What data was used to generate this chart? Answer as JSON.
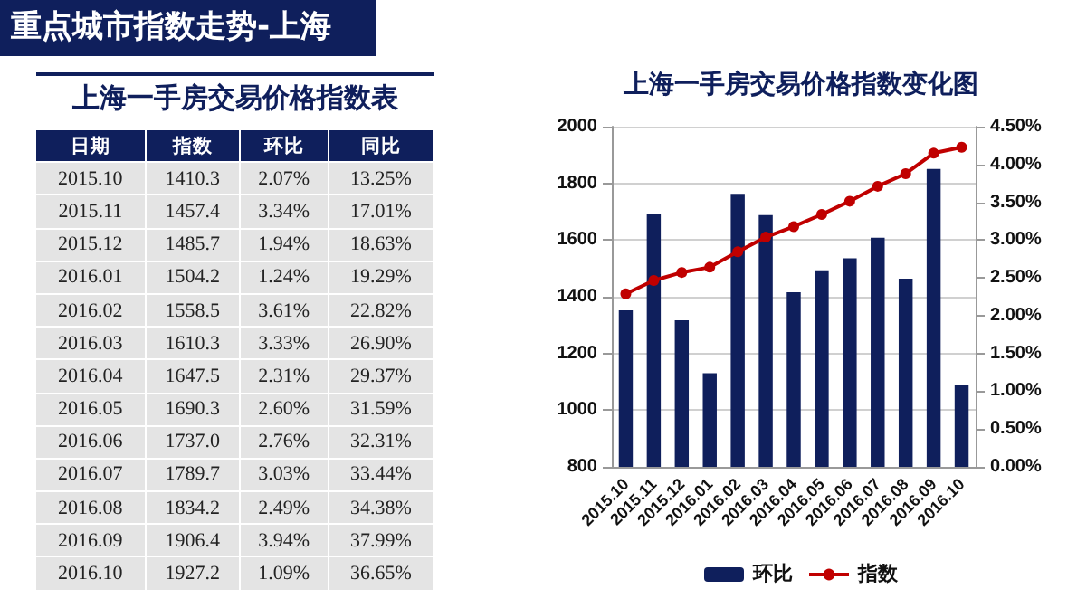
{
  "chart_data": [
    {
      "type": "other",
      "title": "重点城市指数走势-上海",
      "subtitle": "上海一手房交易价格指数表",
      "annotations": [
        "日期",
        "指数",
        "环比",
        "同比",
        "2015.10",
        "1410.3",
        "2.07%",
        "13.25%",
        "2015.11",
        "1457.4",
        "3.34%",
        "17.01%",
        "2015.12",
        "1485.7",
        "1.94%",
        "18.63%",
        "2016.01",
        "1504.2",
        "1.24%",
        "19.29%",
        "2016.02",
        "1558.5",
        "3.61%",
        "22.82%",
        "2016.03",
        "1610.3",
        "3.33%",
        "26.90%",
        "2016.04",
        "1647.5",
        "2.31%",
        "29.37%",
        "2016.05",
        "1690.3",
        "2.60%",
        "31.59%",
        "2016.06",
        "1737.0",
        "2.76%",
        "32.31%",
        "2016.07",
        "1789.7",
        "3.03%",
        "33.44%",
        "2016.08",
        "1834.2",
        "2.49%",
        "34.38%",
        "2016.09",
        "1906.4",
        "3.94%",
        "37.99%",
        "2016.10",
        "1927.2",
        "1.09%",
        "36.65%"
      ]
    },
    {
      "type": "bar",
      "title": "上海一手房交易价格指数变化图",
      "categories": [
        "2015.10",
        "2015.11",
        "2015.12",
        "2016.01",
        "2016.02",
        "2016.03",
        "2016.04",
        "2016.05",
        "2016.06",
        "2016.07",
        "2016.08",
        "2016.09",
        "2016.10"
      ],
      "series": [
        {
          "name": "环比",
          "type": "bar",
          "axis": "y2",
          "color": "#0f1f5c",
          "values": [
            2.07,
            3.34,
            1.94,
            1.24,
            3.61,
            3.33,
            2.31,
            2.6,
            2.76,
            3.03,
            2.49,
            3.94,
            1.09
          ]
        },
        {
          "name": "指数",
          "type": "line",
          "color": "#c00000",
          "values": [
            1410.3,
            1457.4,
            1485.7,
            1504.2,
            1558.5,
            1610.3,
            1647.5,
            1690.3,
            1737.0,
            1789.7,
            1834.2,
            1906.4,
            1927.2
          ]
        }
      ],
      "ylim": [
        800,
        2000
      ],
      "yticks": [
        800,
        1000,
        1200,
        1400,
        1600,
        1800,
        2000
      ],
      "y2lim": [
        0,
        4.5
      ],
      "y2ticks": [
        {
          "value": 0,
          "label": "0.00%"
        },
        {
          "value": 0.5,
          "label": "0.50%"
        },
        {
          "value": 1,
          "label": "1.00%"
        },
        {
          "value": 1.5,
          "label": "1.50%"
        },
        {
          "value": 2,
          "label": "2.00%"
        },
        {
          "value": 2.5,
          "label": "2.50%"
        },
        {
          "value": 3,
          "label": "3.00%"
        },
        {
          "value": 3.5,
          "label": "3.50%"
        },
        {
          "value": 4,
          "label": "4.00%"
        },
        {
          "value": 4.5,
          "label": "4.50%"
        }
      ],
      "grid": "y",
      "legend": "bottom",
      "marker": "circle",
      "line_style": "solid"
    }
  ]
}
